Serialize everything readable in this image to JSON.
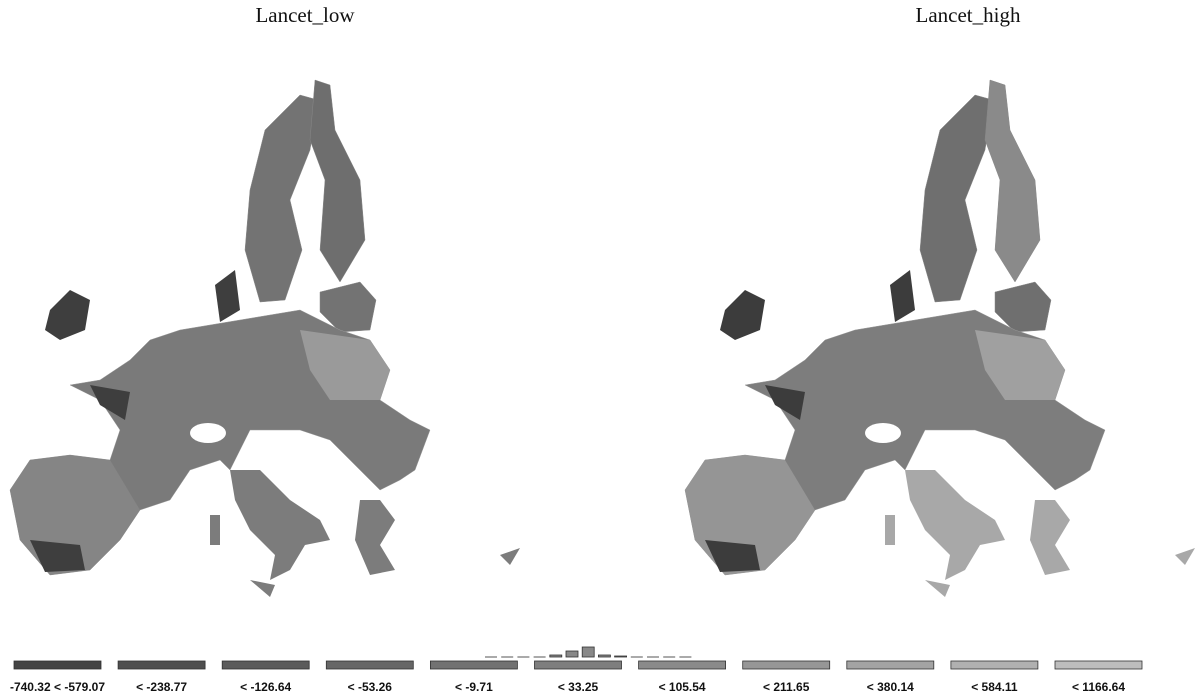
{
  "maps": [
    {
      "title": "Lancet_low"
    },
    {
      "title": "Lancet_high"
    }
  ],
  "legend": {
    "classes": [
      {
        "label": "-740.32 < -579.07",
        "color": "#444444"
      },
      {
        "label": "< -238.77",
        "color": "#4f4f4f"
      },
      {
        "label": "< -126.64",
        "color": "#5b5b5b"
      },
      {
        "label": "< -53.26",
        "color": "#666666"
      },
      {
        "label": "< -9.71",
        "color": "#727272"
      },
      {
        "label": "< 33.25",
        "color": "#7e7e7e"
      },
      {
        "label": "< 105.54",
        "color": "#8a8a8a"
      },
      {
        "label": "< 211.65",
        "color": "#969696"
      },
      {
        "label": "< 380.14",
        "color": "#a3a3a3"
      },
      {
        "label": "< 584.11",
        "color": "#b0b0b0"
      },
      {
        "label": "< 1166.64",
        "color": "#bdbdbd"
      }
    ],
    "histogram": [
      0,
      0,
      0,
      0,
      1,
      3,
      5,
      1,
      0.5,
      0,
      0,
      0,
      0
    ]
  }
}
